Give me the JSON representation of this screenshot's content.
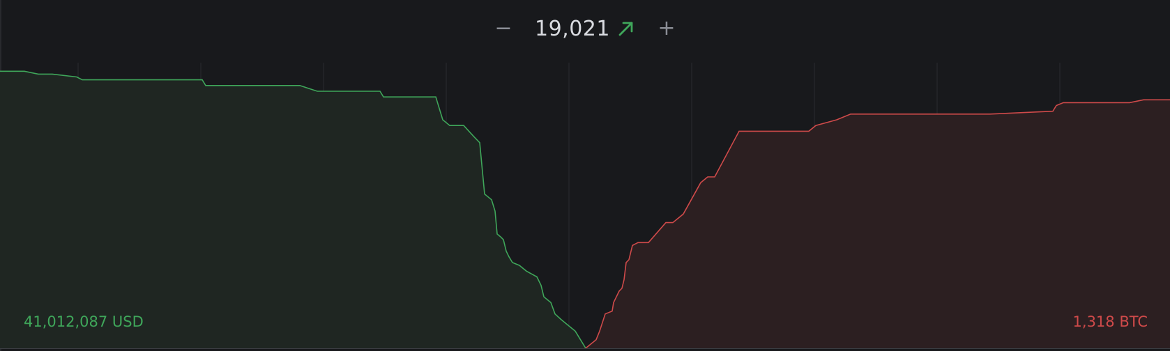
{
  "header": {
    "price": "19,021",
    "minus_label": "−",
    "plus_label": "+"
  },
  "totals": {
    "bids": "41,012,087 USD",
    "asks": "1,318 BTC"
  },
  "colors": {
    "background": "#18191c",
    "bid": "#3fa65a",
    "ask": "#cf4a4a",
    "bid_fill": "#1f2622",
    "ask_fill": "#2c1f21",
    "grid": "#2a2c30",
    "axis": "#3a3c41"
  },
  "chart_data": {
    "type": "area",
    "x_range": [
      0,
      1678
    ],
    "y_range": [
      0,
      1
    ],
    "gridlines": 9,
    "series": [
      {
        "points": [
          [
            0,
            0.97
          ],
          [
            35,
            0.97
          ],
          [
            55,
            0.96
          ],
          [
            75,
            0.96
          ],
          [
            110,
            0.95
          ],
          [
            118,
            0.94
          ],
          [
            290,
            0.94
          ],
          [
            295,
            0.92
          ],
          [
            430,
            0.92
          ],
          [
            455,
            0.9
          ],
          [
            545,
            0.9
          ],
          [
            550,
            0.88
          ],
          [
            625,
            0.88
          ],
          [
            635,
            0.8
          ],
          [
            645,
            0.78
          ],
          [
            665,
            0.78
          ],
          [
            680,
            0.74
          ],
          [
            688,
            0.72
          ],
          [
            695,
            0.54
          ],
          [
            705,
            0.52
          ],
          [
            710,
            0.48
          ],
          [
            713,
            0.4
          ],
          [
            718,
            0.39
          ],
          [
            722,
            0.38
          ],
          [
            726,
            0.34
          ],
          [
            730,
            0.32
          ],
          [
            735,
            0.3
          ],
          [
            745,
            0.29
          ],
          [
            755,
            0.27
          ],
          [
            770,
            0.25
          ],
          [
            776,
            0.22
          ],
          [
            780,
            0.18
          ],
          [
            790,
            0.16
          ],
          [
            796,
            0.12
          ],
          [
            805,
            0.1
          ],
          [
            815,
            0.08
          ],
          [
            825,
            0.06
          ],
          [
            835,
            0.02
          ],
          [
            840,
            0.0
          ]
        ]
      },
      {
        "points": [
          [
            840,
            0.0
          ],
          [
            855,
            0.03
          ],
          [
            860,
            0.06
          ],
          [
            868,
            0.12
          ],
          [
            878,
            0.13
          ],
          [
            880,
            0.16
          ],
          [
            884,
            0.18
          ],
          [
            888,
            0.2
          ],
          [
            892,
            0.21
          ],
          [
            895,
            0.24
          ],
          [
            898,
            0.3
          ],
          [
            902,
            0.31
          ],
          [
            907,
            0.36
          ],
          [
            915,
            0.37
          ],
          [
            930,
            0.37
          ],
          [
            955,
            0.44
          ],
          [
            965,
            0.44
          ],
          [
            980,
            0.47
          ],
          [
            1005,
            0.58
          ],
          [
            1015,
            0.6
          ],
          [
            1025,
            0.6
          ],
          [
            1060,
            0.76
          ],
          [
            1070,
            0.76
          ],
          [
            1160,
            0.76
          ],
          [
            1170,
            0.78
          ],
          [
            1200,
            0.8
          ],
          [
            1220,
            0.82
          ],
          [
            1420,
            0.82
          ],
          [
            1510,
            0.83
          ],
          [
            1515,
            0.85
          ],
          [
            1525,
            0.86
          ],
          [
            1620,
            0.86
          ],
          [
            1640,
            0.87
          ],
          [
            1678,
            0.87
          ]
        ]
      }
    ]
  }
}
